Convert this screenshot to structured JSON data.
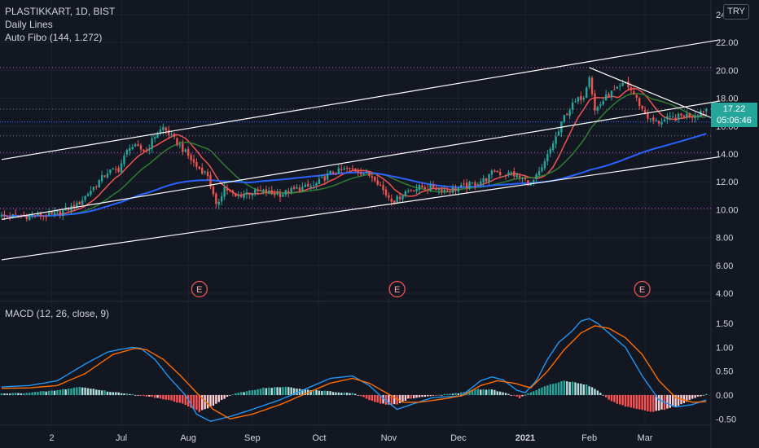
{
  "header": {
    "symbol_line": "PLASTIKKART, 1D, BIST",
    "indicator_1": "Daily Lines",
    "indicator_2": "Auto Fibo (144, 1.272)",
    "currency": "TRY"
  },
  "last_price": {
    "value": "17.22",
    "countdown": "05:06:46"
  },
  "earnings_marker": "E",
  "macd_label": "MACD (12, 26, close, 9)",
  "colors": {
    "background": "#131722",
    "up": "#26a69a",
    "down": "#ef5350",
    "ma_fast": "#ef5350",
    "ma_mid": "#2e7d32",
    "ma_slow": "#2962ff",
    "channel": "#ffffff",
    "macd_line": "#2196f3",
    "signal_line": "#ff6d00",
    "fib_level": "#ab47bc"
  },
  "chart_data": [
    {
      "type": "candlestick",
      "x_ticks": [
        "2",
        "Jul",
        "Aug",
        "Sep",
        "Oct",
        "Nov",
        "Dec",
        "2021",
        "Feb",
        "Mar"
      ],
      "y_ticks": [
        "4.00",
        "6.00",
        "8.00",
        "10.00",
        "12.00",
        "14.00",
        "16.00",
        "18.00",
        "20.00",
        "22.00",
        "24.00"
      ],
      "ylim": [
        3.5,
        24.5
      ],
      "close_path": [
        [
          0,
          9.5
        ],
        [
          18,
          9.6
        ],
        [
          27,
          10.3
        ],
        [
          32,
          11.4
        ],
        [
          38,
          12.7
        ],
        [
          42,
          12.9
        ],
        [
          46,
          14.6
        ],
        [
          52,
          14.2
        ],
        [
          55,
          15.3
        ],
        [
          58,
          15.9
        ],
        [
          63,
          14.8
        ],
        [
          66,
          14.1
        ],
        [
          70,
          13.1
        ],
        [
          74,
          12.5
        ],
        [
          77,
          10.2
        ],
        [
          80,
          11.6
        ],
        [
          84,
          10.9
        ],
        [
          88,
          11.2
        ],
        [
          93,
          11.3
        ],
        [
          100,
          11.1
        ],
        [
          106,
          11.5
        ],
        [
          112,
          11.7
        ],
        [
          118,
          12.6
        ],
        [
          124,
          12.9
        ],
        [
          128,
          12.8
        ],
        [
          134,
          12.3
        ],
        [
          138,
          11.1
        ],
        [
          141,
          10.6
        ],
        [
          145,
          11.3
        ],
        [
          150,
          11.6
        ],
        [
          155,
          11.6
        ],
        [
          160,
          11.4
        ],
        [
          165,
          11.6
        ],
        [
          170,
          11.9
        ],
        [
          174,
          12.2
        ],
        [
          177,
          12.8
        ],
        [
          180,
          12.5
        ],
        [
          183,
          12.6
        ],
        [
          187,
          12.2
        ],
        [
          190,
          11.8
        ],
        [
          194,
          12.9
        ],
        [
          198,
          14.8
        ],
        [
          200,
          15.6
        ],
        [
          202,
          16.7
        ],
        [
          205,
          17.5
        ],
        [
          207,
          17.9
        ],
        [
          209,
          18.2
        ],
        [
          211,
          19.7
        ],
        [
          213,
          17.1
        ],
        [
          215,
          17.6
        ],
        [
          218,
          18.3
        ],
        [
          221,
          18.6
        ],
        [
          224,
          19.1
        ],
        [
          227,
          18.3
        ],
        [
          230,
          17.2
        ],
        [
          233,
          16.4
        ],
        [
          236,
          16.3
        ],
        [
          239,
          16.5
        ],
        [
          242,
          16.6
        ],
        [
          245,
          16.8
        ],
        [
          248,
          16.7
        ],
        [
          251,
          17.1
        ],
        [
          253,
          17.22
        ]
      ],
      "annotations": {
        "last_price": 17.22,
        "earnings_x": [
          71,
          142,
          230
        ],
        "fib_levels": [
          20.2,
          14.1,
          10.1
        ],
        "grey_levels": [
          17.22,
          15.3
        ],
        "blue_level": 16.3,
        "resistance_line": [
          [
            211,
            20.2
          ],
          [
            256,
            16.5
          ]
        ],
        "channel_lines": [
          [
            [
              0,
              13.6
            ],
            [
              258,
              22.2
            ]
          ],
          [
            [
              0,
              9.3
            ],
            [
              258,
              17.8
            ]
          ],
          [
            [
              0,
              6.4
            ],
            [
              258,
              13.8
            ]
          ]
        ]
      }
    },
    {
      "type": "line",
      "title": "MACD (12, 26, close, 9)",
      "y_ticks": [
        "-0.50",
        "0.00",
        "0.50",
        "1.00",
        "1.50"
      ],
      "ylim": [
        -0.6,
        1.7
      ],
      "x_ticks": [
        "2",
        "Jul",
        "Aug",
        "Sep",
        "Oct",
        "Nov",
        "Dec",
        "2021",
        "Feb",
        "Mar"
      ],
      "series": [
        {
          "values": [
            [
              0,
              0.17
            ],
            [
              10,
              0.2
            ],
            [
              20,
              0.3
            ],
            [
              30,
              0.65
            ],
            [
              38,
              0.9
            ],
            [
              42,
              0.95
            ],
            [
              47,
              1.0
            ],
            [
              50,
              0.98
            ],
            [
              55,
              0.75
            ],
            [
              60,
              0.38
            ],
            [
              66,
              0.0
            ],
            [
              70,
              -0.4
            ],
            [
              75,
              -0.55
            ],
            [
              82,
              -0.45
            ],
            [
              90,
              -0.3
            ],
            [
              100,
              -0.1
            ],
            [
              110,
              0.15
            ],
            [
              118,
              0.35
            ],
            [
              126,
              0.4
            ],
            [
              132,
              0.2
            ],
            [
              138,
              -0.12
            ],
            [
              142,
              -0.3
            ],
            [
              148,
              -0.18
            ],
            [
              155,
              -0.05
            ],
            [
              165,
              -0.02
            ],
            [
              172,
              0.3
            ],
            [
              176,
              0.38
            ],
            [
              180,
              0.32
            ],
            [
              185,
              0.1
            ],
            [
              188,
              0.05
            ],
            [
              192,
              0.3
            ],
            [
              196,
              0.75
            ],
            [
              200,
              1.1
            ],
            [
              205,
              1.35
            ],
            [
              208,
              1.55
            ],
            [
              211,
              1.6
            ],
            [
              214,
              1.5
            ],
            [
              219,
              1.25
            ],
            [
              224,
              1.0
            ],
            [
              230,
              0.4
            ],
            [
              236,
              -0.1
            ],
            [
              242,
              -0.25
            ],
            [
              248,
              -0.2
            ],
            [
              253,
              -0.1
            ]
          ]
        },
        {
          "values": [
            [
              0,
              0.14
            ],
            [
              10,
              0.15
            ],
            [
              20,
              0.2
            ],
            [
              30,
              0.45
            ],
            [
              40,
              0.85
            ],
            [
              48,
              0.98
            ],
            [
              52,
              0.95
            ],
            [
              58,
              0.75
            ],
            [
              64,
              0.42
            ],
            [
              70,
              0.05
            ],
            [
              76,
              -0.3
            ],
            [
              82,
              -0.5
            ],
            [
              90,
              -0.4
            ],
            [
              100,
              -0.2
            ],
            [
              110,
              0.05
            ],
            [
              118,
              0.25
            ],
            [
              126,
              0.35
            ],
            [
              132,
              0.25
            ],
            [
              138,
              0.05
            ],
            [
              144,
              -0.15
            ],
            [
              150,
              -0.15
            ],
            [
              160,
              -0.07
            ],
            [
              166,
              0.0
            ],
            [
              172,
              0.2
            ],
            [
              178,
              0.3
            ],
            [
              184,
              0.25
            ],
            [
              190,
              0.15
            ],
            [
              196,
              0.5
            ],
            [
              202,
              0.95
            ],
            [
              208,
              1.3
            ],
            [
              213,
              1.45
            ],
            [
              218,
              1.4
            ],
            [
              224,
              1.2
            ],
            [
              230,
              0.85
            ],
            [
              236,
              0.3
            ],
            [
              242,
              -0.05
            ],
            [
              248,
              -0.15
            ],
            [
              253,
              -0.14
            ]
          ]
        }
      ],
      "histogram_path": [
        [
          0,
          0.03
        ],
        [
          10,
          0.05
        ],
        [
          20,
          0.1
        ],
        [
          28,
          0.17
        ],
        [
          34,
          0.12
        ],
        [
          40,
          0.06
        ],
        [
          46,
          0.03
        ],
        [
          50,
          -0.02
        ],
        [
          55,
          -0.05
        ],
        [
          60,
          -0.1
        ],
        [
          66,
          -0.2
        ],
        [
          71,
          -0.35
        ],
        [
          76,
          -0.22
        ],
        [
          82,
          0.0
        ],
        [
          88,
          0.08
        ],
        [
          94,
          0.15
        ],
        [
          102,
          0.17
        ],
        [
          108,
          0.12
        ],
        [
          114,
          0.1
        ],
        [
          120,
          0.06
        ],
        [
          126,
          0.04
        ],
        [
          130,
          -0.05
        ],
        [
          134,
          -0.15
        ],
        [
          138,
          -0.2
        ],
        [
          142,
          -0.2
        ],
        [
          146,
          -0.08
        ],
        [
          150,
          -0.05
        ],
        [
          156,
          0.0
        ],
        [
          164,
          0.04
        ],
        [
          170,
          0.12
        ],
        [
          176,
          0.12
        ],
        [
          182,
          0.02
        ],
        [
          186,
          -0.06
        ],
        [
          190,
          0.06
        ],
        [
          196,
          0.2
        ],
        [
          202,
          0.3
        ],
        [
          206,
          0.26
        ],
        [
          210,
          0.22
        ],
        [
          214,
          0.1
        ],
        [
          218,
          -0.1
        ],
        [
          222,
          -0.2
        ],
        [
          228,
          -0.3
        ],
        [
          234,
          -0.35
        ],
        [
          238,
          -0.3
        ],
        [
          244,
          -0.2
        ],
        [
          248,
          -0.08
        ],
        [
          253,
          0.02
        ]
      ]
    }
  ]
}
